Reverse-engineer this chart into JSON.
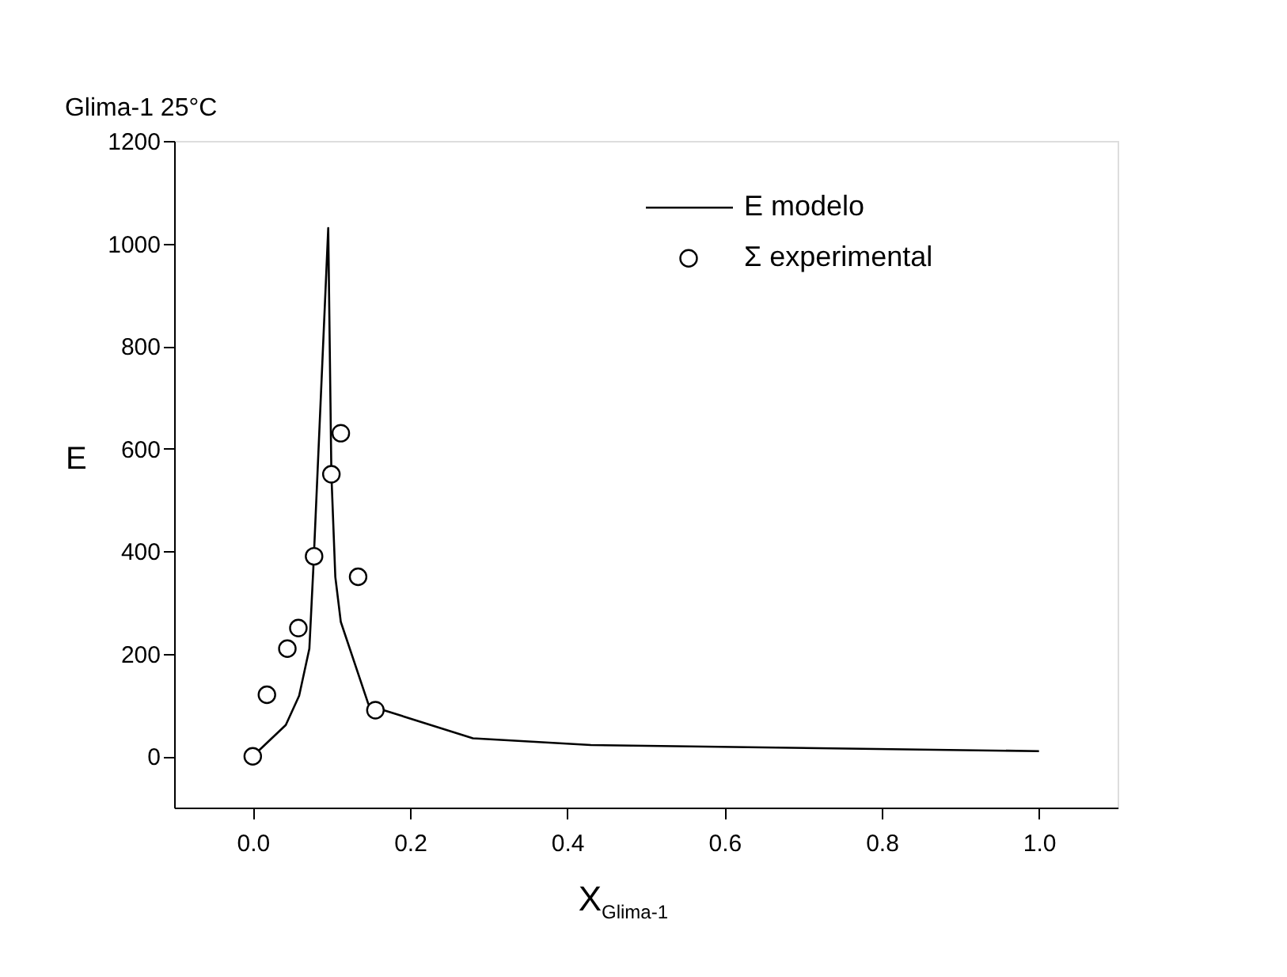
{
  "chart_data": {
    "type": "line",
    "title": "Glima-1 25°C",
    "xlabel": "X$_{Glima-1}$",
    "ylabel": "E",
    "xlim": [
      -0.1,
      1.1
    ],
    "xticks": [
      {
        "value": 0,
        "label": "0.0"
      },
      0.2,
      0.4,
      0.6,
      0.8,
      {
        "value": 1,
        "label": "1.0"
      }
    ],
    "ylim": [
      -100,
      1200
    ],
    "yticks": [
      0,
      200,
      400,
      600,
      800,
      {
        "value": 1000,
        "label": "1000"
      },
      {
        "value": 1200,
        "label": "1200"
      }
    ],
    "grid": false,
    "legend": "top right",
    "series": [
      {
        "name": "E modelo",
        "color": "#000000",
        "marker": "none",
        "line_style": "solid",
        "x": [
          0.0,
          0.042,
          0.059,
          0.072,
          0.077,
          0.096,
          0.1,
          0.105,
          0.112,
          0.147,
          0.156,
          0.28,
          0.43,
          1.0
        ],
        "values": [
          0,
          61,
          118,
          210,
          365,
          1030,
          550,
          350,
          262,
          102,
          95,
          35,
          22,
          10
        ]
      },
      {
        "name": "Σ experimental",
        "type": "scatter",
        "color": "#000000",
        "marker": "circle",
        "x": [
          0.0,
          0.018,
          0.044,
          0.058,
          0.078,
          0.1,
          0.112,
          0.134,
          0.156
        ],
        "values": [
          0,
          120,
          210,
          250,
          390,
          550,
          630,
          350,
          90
        ]
      }
    ]
  }
}
